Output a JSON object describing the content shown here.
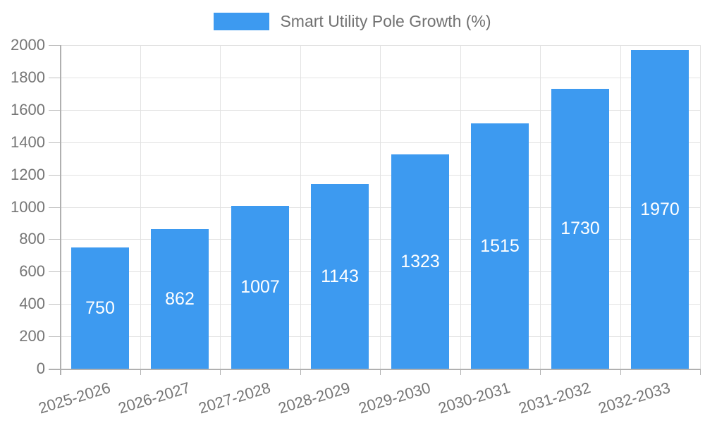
{
  "legend": {
    "label": "Smart Utility Pole Growth (%)"
  },
  "chart_data": {
    "type": "bar",
    "title": "",
    "categories": [
      "2025-2026",
      "2026-2027",
      "2027-2028",
      "2028-2029",
      "2029-2030",
      "2030-2031",
      "2031-2032",
      "2032-2033"
    ],
    "series": [
      {
        "name": "Smart Utility Pole Growth (%)",
        "values": [
          750,
          862,
          1007,
          1143,
          1323,
          1515,
          1730,
          1970
        ]
      }
    ],
    "value_labels": [
      "750",
      "862",
      "1007",
      "1143",
      "1323",
      "1515",
      "1730",
      "1970"
    ],
    "yticks": [
      0,
      200,
      400,
      600,
      800,
      1000,
      1200,
      1400,
      1600,
      1800,
      2000
    ],
    "ylim": [
      0,
      2000
    ],
    "xlabel": "",
    "ylabel": "",
    "grid": true,
    "legend_position": "top-center",
    "colors": {
      "bar": "#3D9AF0",
      "axis_text": "#757575",
      "legend_text": "#717171",
      "gridline": "#e2e2e2",
      "axis_line": "#b0b0b0",
      "tick_stub": "#c0c0c0",
      "value_label": "#ffffff",
      "background": "#ffffff"
    }
  }
}
